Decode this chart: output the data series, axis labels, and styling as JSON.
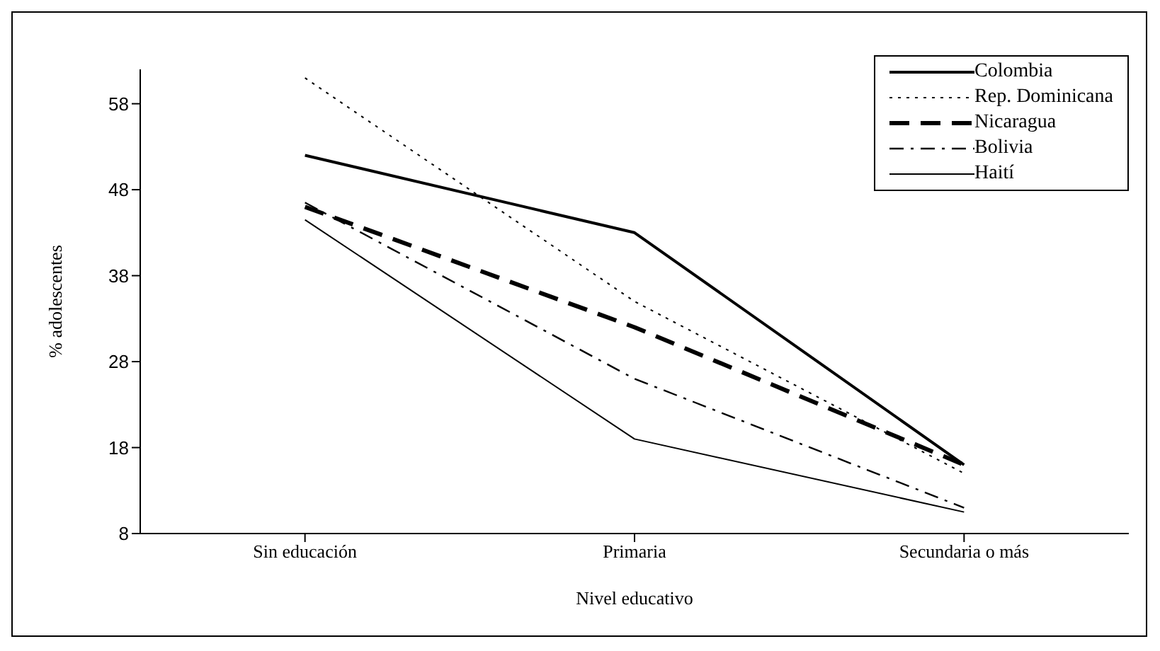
{
  "chart_data": {
    "type": "line",
    "xlabel": "Nivel educativo",
    "ylabel": "% adolescentes",
    "categories": [
      "Sin educación",
      "Primaria",
      "Secundaria o más"
    ],
    "series": [
      {
        "name": "Colombia",
        "color": "#000000",
        "line_style": "solid",
        "values": [
          52,
          43,
          16
        ]
      },
      {
        "name": "Rep. Dominicana",
        "color": "#000000",
        "line_style": "dotted",
        "values": [
          61,
          35,
          15
        ]
      },
      {
        "name": "Nicaragua",
        "color": "#000000",
        "line_style": "dashed",
        "values": [
          46,
          32,
          16
        ]
      },
      {
        "name": "Bolivia",
        "color": "#000000",
        "line_style": "dashdot",
        "values": [
          46.5,
          26,
          11
        ]
      },
      {
        "name": "Haití",
        "color": "#000000",
        "line_style": "solid",
        "values": [
          44.5,
          19,
          10.5
        ]
      }
    ],
    "ylim": [
      8,
      62
    ],
    "yticks": [
      8,
      18,
      28,
      38,
      48,
      58
    ],
    "legend": "top right",
    "marker": "none"
  }
}
